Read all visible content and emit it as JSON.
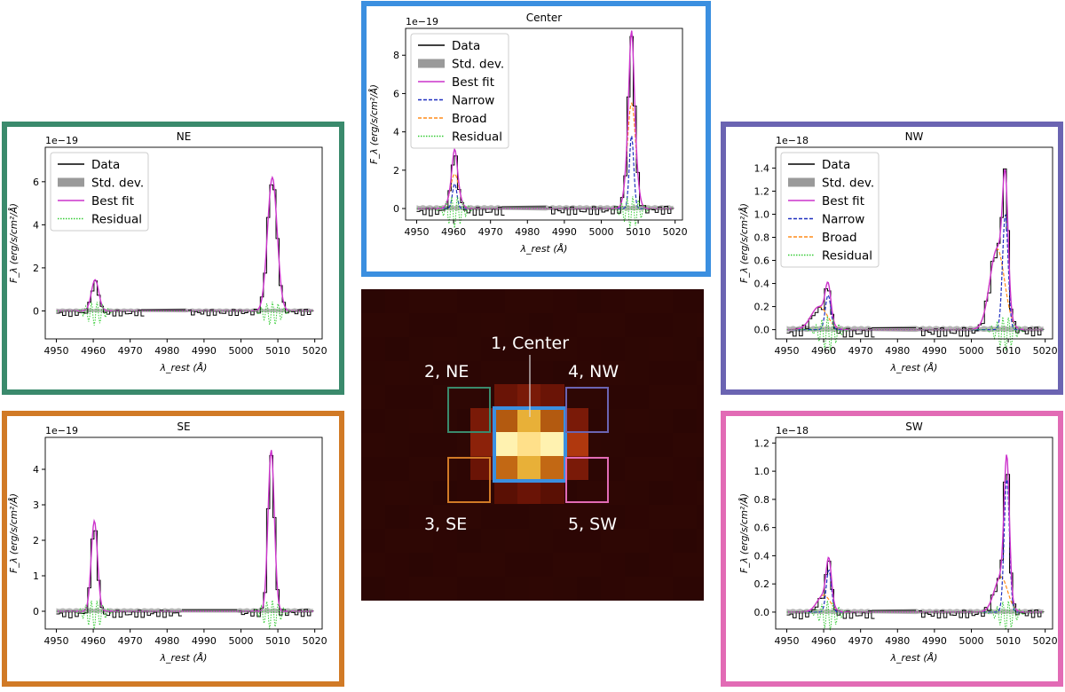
{
  "figure": {
    "map_labels": {
      "center": "1, Center",
      "ne": "2, NE",
      "se": "3, SE",
      "nw": "4, NW",
      "sw": "5, SW"
    },
    "colors": {
      "center": "#3b8fe0",
      "ne": "#3a8a6c",
      "se": "#d17a26",
      "nw": "#6b64b2",
      "sw": "#e26bb5",
      "data": "#000000",
      "std": "#9a9a9a",
      "fit": "#cc33cc",
      "narrow": "#1f2fbf",
      "broad": "#ff8c1a",
      "residual": "#33cc33"
    },
    "legend_labels": {
      "data": "Data",
      "std": "Std. dev.",
      "fit": "Best fit",
      "narrow": "Narrow",
      "broad": "Broad",
      "residual": "Residual"
    }
  },
  "chart_data": [
    {
      "id": "center",
      "type": "line",
      "title": "Center",
      "xlabel": "λ_rest (Å)",
      "ylabel": "F_λ (erg/s/cm²/Å)",
      "scale_label": "1e−19",
      "xlim": [
        4947,
        5022
      ],
      "ylim": [
        -0.6,
        9.4
      ],
      "xticks": [
        4950,
        4960,
        4970,
        4980,
        4990,
        5000,
        5010,
        5020
      ],
      "yticks": [
        0,
        2,
        4,
        6,
        8
      ],
      "legend": [
        "data",
        "std",
        "fit",
        "narrow",
        "broad",
        "residual"
      ],
      "gap": [
        4973,
        4985
      ],
      "lines": [
        {
          "center": 4960.3,
          "narrow": {
            "amp": 1.3,
            "sigma": 0.6
          },
          "broad": {
            "amp": 1.8,
            "sigma": 1.15
          }
        },
        {
          "center": 5008.2,
          "narrow": {
            "amp": 3.8,
            "sigma": 0.6
          },
          "broad": {
            "amp": 5.5,
            "sigma": 1.15
          }
        }
      ]
    },
    {
      "id": "ne",
      "type": "line",
      "title": "NE",
      "xlabel": "λ_rest (Å)",
      "ylabel": "F_λ (erg/s/cm²/Å)",
      "scale_label": "1e−19",
      "xlim": [
        4947,
        5022
      ],
      "ylim": [
        -1.3,
        7.6
      ],
      "xticks": [
        4950,
        4960,
        4970,
        4980,
        4990,
        5000,
        5010,
        5020
      ],
      "yticks": [
        0,
        2,
        4,
        6
      ],
      "legend": [
        "data",
        "std",
        "fit",
        "residual"
      ],
      "gap": [
        4973,
        4985
      ],
      "lines": [
        {
          "center": 4960.5,
          "single": {
            "amp": 1.45,
            "sigma": 1.0
          }
        },
        {
          "center": 5008.5,
          "single": {
            "amp": 6.2,
            "sigma": 1.3
          }
        }
      ]
    },
    {
      "id": "se",
      "type": "line",
      "title": "SE",
      "xlabel": "λ_rest (Å)",
      "ylabel": "F_λ (erg/s/cm²/Å)",
      "scale_label": "1e−19",
      "xlim": [
        4947,
        5022
      ],
      "ylim": [
        -0.5,
        4.9
      ],
      "xticks": [
        4950,
        4960,
        4970,
        4980,
        4990,
        5000,
        5010,
        5020
      ],
      "yticks": [
        0,
        1,
        2,
        3,
        4
      ],
      "legend": [],
      "gap": [
        4984,
        4999
      ],
      "lines": [
        {
          "center": 4960.3,
          "single": {
            "amp": 2.55,
            "sigma": 0.85
          }
        },
        {
          "center": 5008.2,
          "single": {
            "amp": 4.55,
            "sigma": 0.85
          }
        }
      ]
    },
    {
      "id": "nw",
      "type": "line",
      "title": "NW",
      "xlabel": "λ_rest (Å)",
      "ylabel": "F_λ (erg/s/cm²/Å)",
      "scale_label": "1e−18",
      "xlim": [
        4947,
        5022
      ],
      "ylim": [
        -0.08,
        1.58
      ],
      "xticks": [
        4950,
        4960,
        4970,
        4980,
        4990,
        5000,
        5010,
        5020
      ],
      "yticks": [
        0.0,
        0.2,
        0.4,
        0.6,
        0.8,
        1.0,
        1.2,
        1.4
      ],
      "legend": [
        "data",
        "std",
        "fit",
        "narrow",
        "broad",
        "residual"
      ],
      "gap": [
        4973,
        4985
      ],
      "lines": [
        {
          "center": 4961.2,
          "narrow": {
            "amp": 0.3,
            "sigma": 0.75
          },
          "broad": {
            "amp": 0.2,
            "sigma": 2.2
          },
          "broad_center": 4958.8
        },
        {
          "center": 5009.2,
          "narrow": {
            "amp": 1.0,
            "sigma": 0.75
          },
          "broad": {
            "amp": 0.7,
            "sigma": 2.0
          },
          "broad_center": 5007.0
        }
      ]
    },
    {
      "id": "sw",
      "type": "line",
      "title": "SW",
      "xlabel": "λ_rest (Å)",
      "ylabel": "F_λ (erg/s/cm²/Å)",
      "scale_label": "1e−18",
      "xlim": [
        4947,
        5022
      ],
      "ylim": [
        -0.12,
        1.24
      ],
      "xticks": [
        4950,
        4960,
        4970,
        4980,
        4990,
        5000,
        5010,
        5020
      ],
      "yticks": [
        0.0,
        0.2,
        0.4,
        0.6,
        0.8,
        1.0,
        1.2
      ],
      "legend": [],
      "gap": [
        4973,
        4985
      ],
      "lines": [
        {
          "center": 4961.4,
          "narrow": {
            "amp": 0.3,
            "sigma": 0.7
          },
          "broad": {
            "amp": 0.12,
            "sigma": 1.8
          },
          "broad_center": 4960.0
        },
        {
          "center": 5009.6,
          "narrow": {
            "amp": 0.95,
            "sigma": 0.7
          },
          "broad": {
            "amp": 0.25,
            "sigma": 1.8
          },
          "broad_center": 5008.0
        }
      ]
    }
  ]
}
